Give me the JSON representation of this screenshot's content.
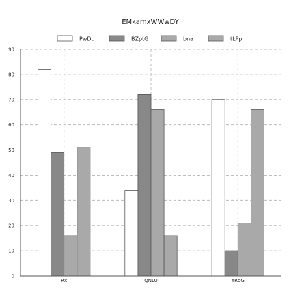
{
  "chart_data": {
    "type": "bar",
    "title": "EMkamxWWwDY",
    "categories": [
      "Rx",
      "QNLU",
      "YRqG"
    ],
    "series": [
      {
        "name": "PwDt",
        "values": [
          82,
          34,
          70
        ],
        "color": "#ffffff"
      },
      {
        "name": "BZptG",
        "values": [
          49,
          72,
          10
        ],
        "color": "#888888"
      },
      {
        "name": "bna",
        "values": [
          16,
          66,
          21
        ],
        "color": "#a9a9a9"
      },
      {
        "name": "tLPp",
        "values": [
          51,
          16,
          66
        ],
        "color": "#a9a9a9"
      }
    ],
    "ylim": [
      0,
      90
    ],
    "yticks": [
      0,
      10,
      20,
      30,
      40,
      50,
      60,
      70,
      80,
      90
    ],
    "xlabel": "",
    "ylabel": "",
    "grid": true,
    "legend_position": "top"
  }
}
